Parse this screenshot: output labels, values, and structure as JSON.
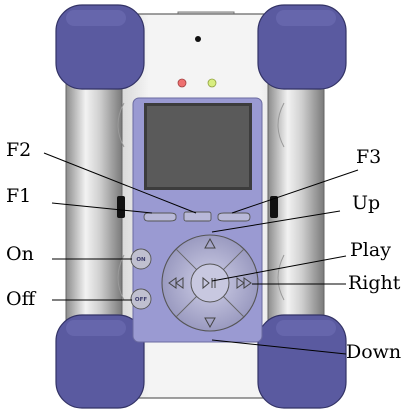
{
  "labels": {
    "f2": "F2",
    "f3": "F3",
    "f1": "F1",
    "up": "Up",
    "on": "On",
    "play": "Play",
    "right": "Right",
    "off": "Off",
    "down": "Down"
  },
  "buttons": {
    "on": "ON",
    "off": "OFF"
  },
  "colors": {
    "bumper": "#5a5aa0",
    "panel": "#9a9ad2",
    "screen": "#5a5a5a",
    "led_red": "#ee7070",
    "led_green": "#d8ee80"
  }
}
